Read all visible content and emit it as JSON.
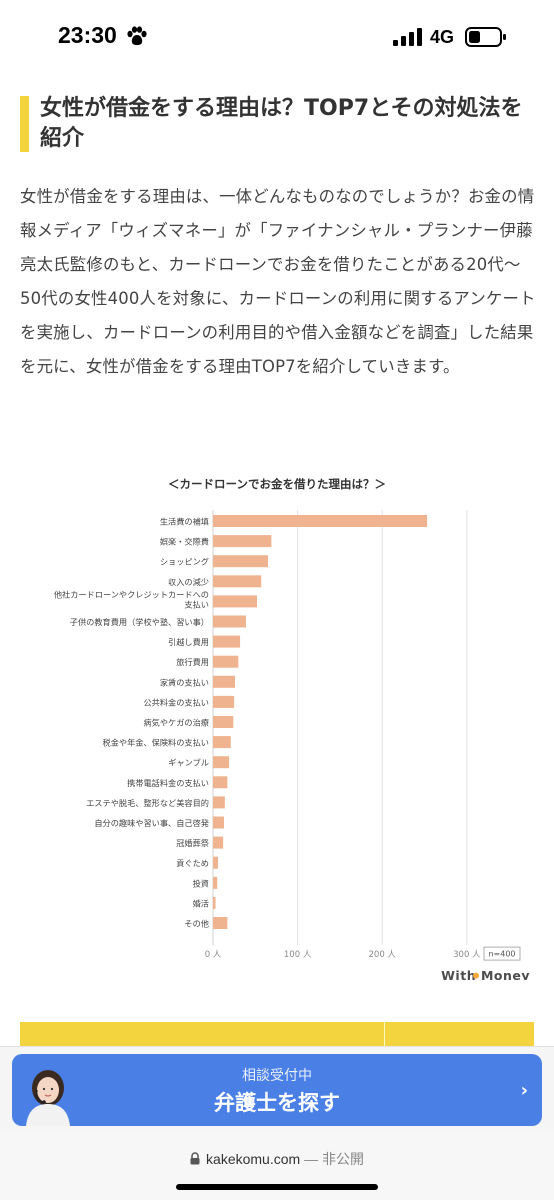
{
  "status_bar": {
    "time": "23:30",
    "network": "4G",
    "icons": [
      "paw-icon",
      "signal-icon",
      "battery-icon"
    ]
  },
  "article": {
    "heading": "女性が借金をする理由は？TOP7とその対処法を紹介",
    "intro": "女性が借金をする理由は、一体どんなものなのでしょうか？お金の情報メディア「ウィズマネー」が「ファイナンシャル・プランナー伊藤亮太氏監修のもと、カードローンでお金を借りたことがある20代〜50代の女性400人を対象に、カードローンの利用に関するアンケートを実施し、カードローンの利用目的や借入金額などを調査」した結果を元に、女性が借金をする理由TOP7を紹介していきます。"
  },
  "chart_data": {
    "type": "bar",
    "orientation": "horizontal",
    "title": "＜カードローンでお金を借りた理由は？＞",
    "categories": [
      "生活費の補填",
      "娯楽・交際費",
      "ショッピング",
      "収入の減少",
      "他社カードローンやクレジットカードへの支払い",
      "子供の教育費用（学校や塾、習い事）",
      "引越し費用",
      "旅行費用",
      "家賃の支払い",
      "公共料金の支払い",
      "病気やケガの治療",
      "税金や年金、保険料の支払い",
      "ギャンブル",
      "携帯電話料金の支払い",
      "エステや脱毛、整形など美容目的",
      "自分の趣味や習い事、自己啓発",
      "冠婚葬祭",
      "貢ぐため",
      "投資",
      "婚活",
      "その他"
    ],
    "category_lines": [
      [
        "生活費の補填"
      ],
      [
        "娯楽・交際費"
      ],
      [
        "ショッピング"
      ],
      [
        "収入の減少"
      ],
      [
        "他社カードローンやクレジットカードへの",
        "支払い"
      ],
      [
        "子供の教育費用（学校や塾、習い事）"
      ],
      [
        "引越し費用"
      ],
      [
        "旅行費用"
      ],
      [
        "家賃の支払い"
      ],
      [
        "公共料金の支払い"
      ],
      [
        "病気やケガの治療"
      ],
      [
        "税金や年金、保険料の支払い"
      ],
      [
        "ギャンブル"
      ],
      [
        "携帯電話料金の支払い"
      ],
      [
        "エステや脱毛、整形など美容目的"
      ],
      [
        "自分の趣味や習い事、自己啓発"
      ],
      [
        "冠婚葬祭"
      ],
      [
        "貢ぐため"
      ],
      [
        "投資"
      ],
      [
        "婚活"
      ],
      [
        "その他"
      ]
    ],
    "values": [
      253,
      69,
      65,
      57,
      52,
      39,
      32,
      30,
      26,
      25,
      24,
      21,
      19,
      17,
      14,
      13,
      12,
      6,
      5,
      3,
      17
    ],
    "xlim": [
      0,
      320
    ],
    "x_ticks": [
      0,
      100,
      200,
      300
    ],
    "x_tick_labels": [
      "0 人",
      "100 人",
      "200 人",
      "300 人"
    ],
    "sample_size": "n=400",
    "grid": "vertical",
    "bar_color": "#efb38f",
    "logo": "With Money"
  },
  "cta": {
    "sub_label": "相談受付中",
    "main_label": "弁護士を探す",
    "chevron": "›",
    "color": "#4a7fe6"
  },
  "browser": {
    "url": "kakekomu.com",
    "privacy": "— 非公開"
  }
}
